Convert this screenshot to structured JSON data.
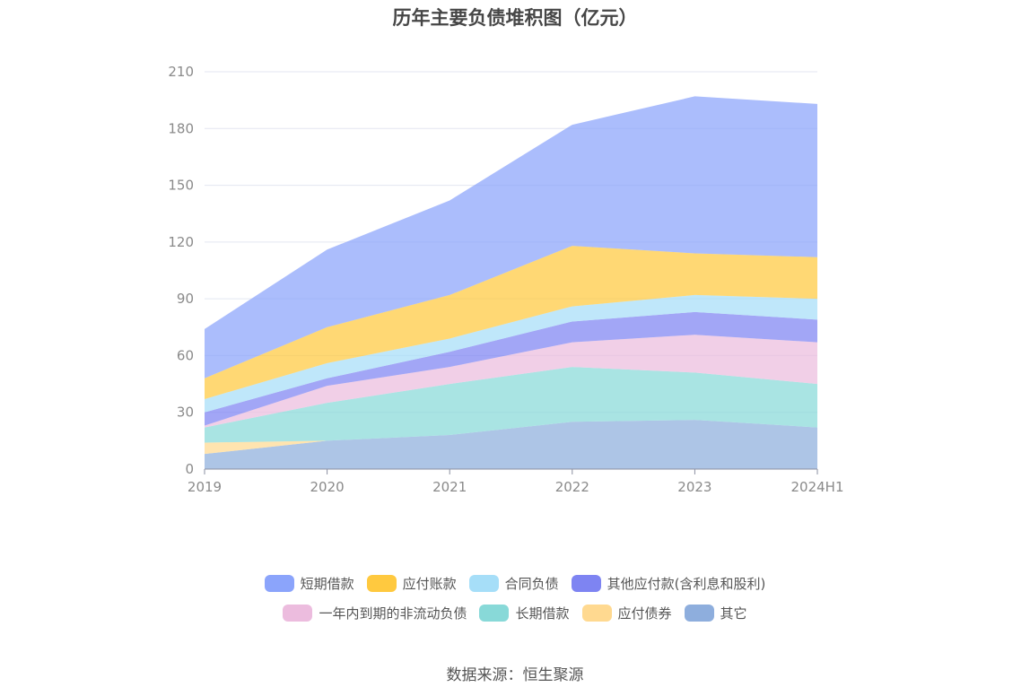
{
  "chart_data": {
    "type": "area",
    "title": "历年主要负债堆积图（亿元）",
    "categories": [
      "2019",
      "2020",
      "2021",
      "2022",
      "2023",
      "2024H1"
    ],
    "ylim": [
      0,
      210
    ],
    "yticks": [
      0,
      30,
      60,
      90,
      120,
      150,
      180,
      210
    ],
    "grid": true,
    "legend_placement": "bottom",
    "series": [
      {
        "name": "其它",
        "color": "#8eaedd",
        "values": [
          8,
          15,
          18,
          25,
          26,
          22
        ]
      },
      {
        "name": "应付债券",
        "color": "#ffd990",
        "values": [
          6,
          0,
          0,
          0,
          0,
          0
        ]
      },
      {
        "name": "长期借款",
        "color": "#88d9d8",
        "values": [
          8,
          20,
          27,
          29,
          25,
          23
        ]
      },
      {
        "name": "一年内到期的非流动负债",
        "color": "#ecbcde",
        "values": [
          1,
          9,
          9,
          13,
          20,
          22
        ]
      },
      {
        "name": "其他应付款(含利息和股利)",
        "color": "#7e84f2",
        "values": [
          7,
          4,
          8,
          11,
          12,
          12
        ]
      },
      {
        "name": "合同负债",
        "color": "#a6def8",
        "values": [
          7,
          8,
          7,
          8,
          9,
          11
        ]
      },
      {
        "name": "应付账款",
        "color": "#ffc93f",
        "values": [
          11,
          19,
          23,
          32,
          22,
          22
        ]
      },
      {
        "name": "短期借款",
        "color": "#8ba4fb",
        "values": [
          26,
          41,
          50,
          64,
          83,
          81
        ]
      }
    ],
    "legend_rows": [
      [
        "短期借款",
        "应付账款",
        "合同负债",
        "其他应付款(含利息和股利)"
      ],
      [
        "一年内到期的非流动负债",
        "长期借款",
        "应付债券",
        "其它"
      ]
    ]
  },
  "source": "数据来源：恒生聚源"
}
